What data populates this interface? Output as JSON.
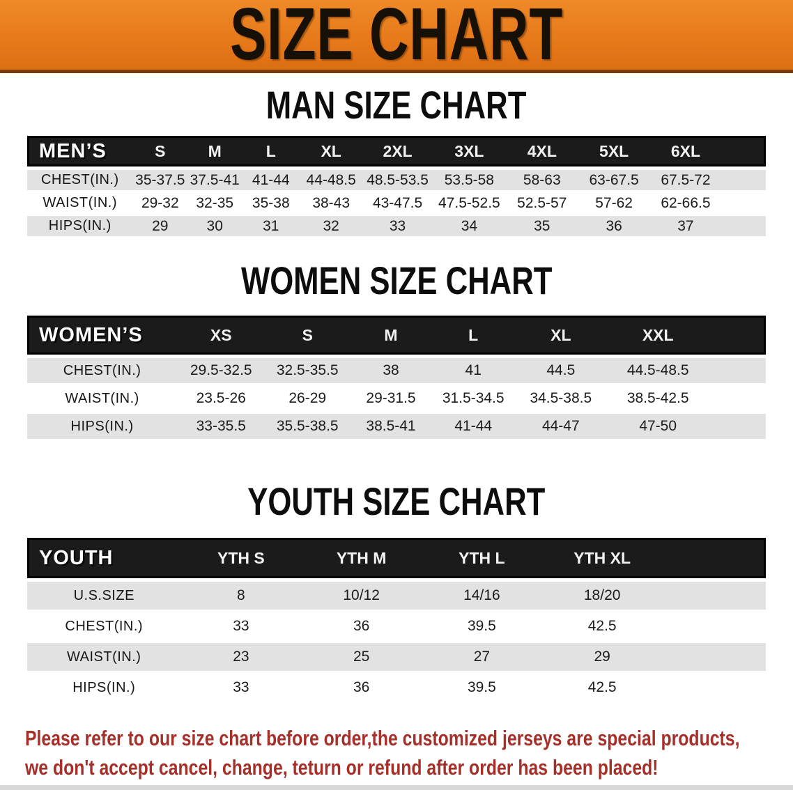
{
  "banner": {
    "title": "SIZE CHART",
    "bg_color": "#e77a1b",
    "text_color": "#161006"
  },
  "sections": {
    "men": {
      "heading": "MAN SIZE CHART",
      "table": {
        "header_label": "MEN’S",
        "columns": [
          "S",
          "M",
          "L",
          "XL",
          "2XL",
          "3XL",
          "4XL",
          "5XL",
          "6XL"
        ],
        "rows": [
          {
            "label": "CHEST(IN.)",
            "values": [
              "35-37.5",
              "37.5-41",
              "41-44",
              "44-48.5",
              "48.5-53.5",
              "53.5-58",
              "58-63",
              "63-67.5",
              "67.5-72"
            ]
          },
          {
            "label": "WAIST(IN.)",
            "values": [
              "29-32",
              "32-35",
              "35-38",
              "38-43",
              "43-47.5",
              "47.5-52.5",
              "52.5-57",
              "57-62",
              "62-66.5"
            ]
          },
          {
            "label": "HIPS(IN.)",
            "values": [
              "29",
              "30",
              "31",
              "32",
              "33",
              "34",
              "35",
              "36",
              "37"
            ]
          }
        ]
      }
    },
    "women": {
      "heading": "WOMEN SIZE CHART",
      "table": {
        "header_label": "WOMEN’S",
        "columns": [
          "XS",
          "S",
          "M",
          "L",
          "XL",
          "XXL"
        ],
        "rows": [
          {
            "label": "CHEST(IN.)",
            "values": [
              "29.5-32.5",
              "32.5-35.5",
              "38",
              "41",
              "44.5",
              "44.5-48.5"
            ]
          },
          {
            "label": "WAIST(IN.)",
            "values": [
              "23.5-26",
              "26-29",
              "29-31.5",
              "31.5-34.5",
              "34.5-38.5",
              "38.5-42.5"
            ]
          },
          {
            "label": "HIPS(IN.)",
            "values": [
              "33-35.5",
              "35.5-38.5",
              "38.5-41",
              "41-44",
              "44-47",
              "47-50"
            ]
          }
        ]
      }
    },
    "youth": {
      "heading": "YOUTH SIZE CHART",
      "table": {
        "header_label": "YOUTH",
        "columns": [
          "YTH S",
          "YTH M",
          "YTH L",
          "YTH XL"
        ],
        "rows": [
          {
            "label": "U.S.SIZE",
            "values": [
              "8",
              "10/12",
              "14/16",
              "18/20"
            ]
          },
          {
            "label": "CHEST(IN.)",
            "values": [
              "33",
              "36",
              "39.5",
              "42.5"
            ]
          },
          {
            "label": "WAIST(IN.)",
            "values": [
              "23",
              "25",
              "27",
              "29"
            ]
          },
          {
            "label": "HIPS(IN.)",
            "values": [
              "33",
              "36",
              "39.5",
              "42.5"
            ]
          }
        ]
      }
    }
  },
  "footer": {
    "line1": "Please refer to our size chart before order,the customized jerseys are special products,",
    "line2": "we don't accept cancel, change, teturn or refund after order has been placed!",
    "text_color": "#a5302a"
  }
}
